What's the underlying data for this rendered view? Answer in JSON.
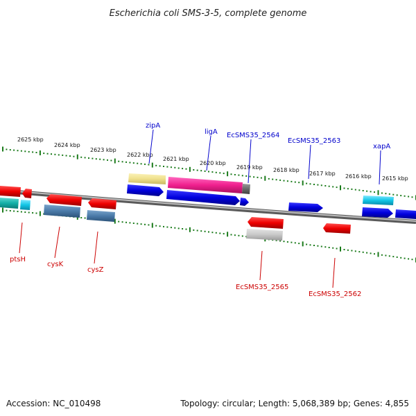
{
  "title": "Escherichia coli SMS-3-5, complete genome",
  "footer": {
    "accession": "Accession: NC_010498",
    "topology": "Topology: circular; Length: 5,068,389 bp; Genes: 4,855"
  },
  "colors": {
    "forward_label": "#0000cc",
    "reverse_label": "#cc0000",
    "tick": "#1a7a1a",
    "backbone": "#8a8a8a"
  },
  "scale_labels": [
    "2625 kbp",
    "2624 kbp",
    "2623 kbp",
    "2622 kbp",
    "2621 kbp",
    "2620 kbp",
    "2619 kbp",
    "2618 kbp",
    "2617 kbp",
    "2616 kbp",
    "2615 kbp"
  ],
  "forward_labels": [
    "zipA",
    "ligA",
    "EcSMS35_2564",
    "EcSMS35_2563",
    "xapA"
  ],
  "reverse_labels": [
    "ptsH",
    "cysK",
    "cysZ",
    "EcSMS35_2565",
    "EcSMS35_2562"
  ]
}
